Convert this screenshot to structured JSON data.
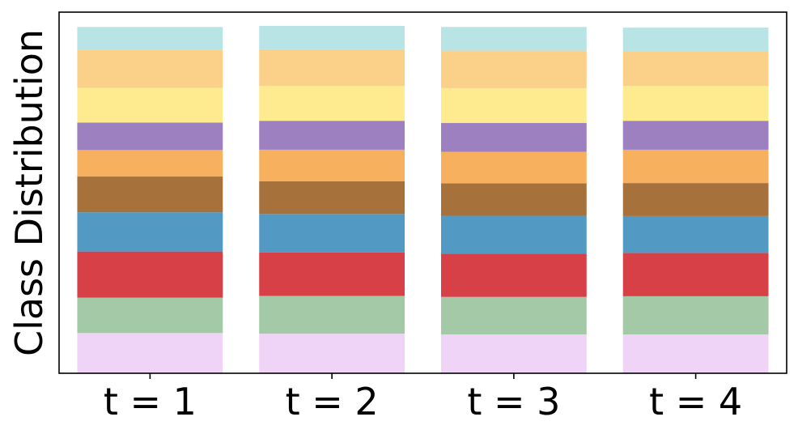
{
  "chart_data": {
    "type": "bar",
    "stacked": true,
    "ylabel": "Class Distribution",
    "xlabel": "",
    "categories": [
      "t = 1",
      "t = 2",
      "t = 3",
      "t = 4"
    ],
    "ylim": [
      0,
      1.05
    ],
    "grid": false,
    "series": [
      {
        "color": "#f0d4f7",
        "values": [
          0.117,
          0.115,
          0.113,
          0.113
        ]
      },
      {
        "color": "#a4c9a7",
        "values": [
          0.103,
          0.11,
          0.109,
          0.111
        ]
      },
      {
        "color": "#d74046",
        "values": [
          0.134,
          0.126,
          0.126,
          0.126
        ]
      },
      {
        "color": "#5299c3",
        "values": [
          0.114,
          0.112,
          0.11,
          0.107
        ]
      },
      {
        "color": "#a6713a",
        "values": [
          0.104,
          0.095,
          0.094,
          0.096
        ]
      },
      {
        "color": "#f6b05e",
        "values": [
          0.077,
          0.092,
          0.092,
          0.097
        ]
      },
      {
        "color": "#9c80c0",
        "values": [
          0.08,
          0.084,
          0.084,
          0.084
        ]
      },
      {
        "color": "#feeb8f",
        "values": [
          0.101,
          0.101,
          0.101,
          0.101
        ]
      },
      {
        "color": "#fbd089",
        "values": [
          0.111,
          0.107,
          0.109,
          0.101
        ]
      },
      {
        "color": "#b9e4e6",
        "values": [
          0.066,
          0.068,
          0.069,
          0.069
        ]
      }
    ]
  }
}
